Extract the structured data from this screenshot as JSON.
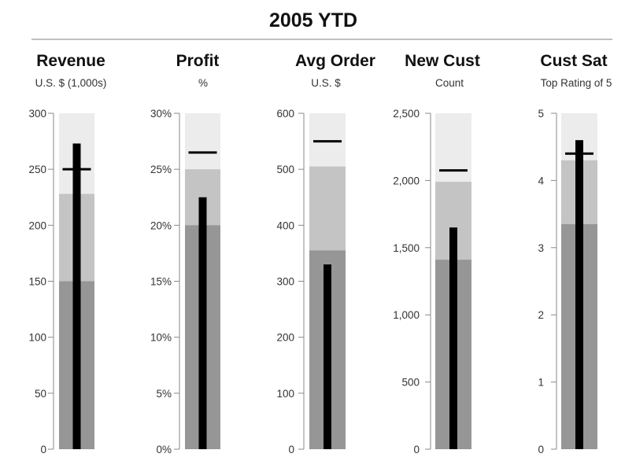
{
  "chart_data": {
    "type": "bullet",
    "title": "2005 YTD",
    "orientation": "vertical",
    "colors": {
      "range_light": "#ececec",
      "range_mid": "#c4c4c4",
      "range_dark": "#969696",
      "bar": "#000000",
      "target": "#000000",
      "axis": "#888888",
      "tick_label": "#333333",
      "title": "#111111"
    },
    "charts": [
      {
        "title": "Revenue",
        "subtitle": "U.S. $ (1,000s)",
        "ylim": [
          0,
          300
        ],
        "ticks": [
          0,
          50,
          100,
          150,
          200,
          250,
          300
        ],
        "tick_labels": [
          "0",
          "50",
          "100",
          "150",
          "200",
          "250",
          "300"
        ],
        "ranges": [
          150,
          228,
          300
        ],
        "value": 273,
        "target": 250
      },
      {
        "title": "Profit",
        "subtitle": "%",
        "ylim": [
          0,
          30
        ],
        "ticks": [
          0,
          5,
          10,
          15,
          20,
          25,
          30
        ],
        "tick_labels": [
          "0%",
          "5%",
          "10%",
          "15%",
          "20%",
          "25%",
          "30%"
        ],
        "ranges": [
          20,
          25,
          30
        ],
        "value": 22.5,
        "target": 26.5
      },
      {
        "title": "Avg Order",
        "subtitle": "U.S. $",
        "ylim": [
          0,
          600
        ],
        "ticks": [
          0,
          100,
          200,
          300,
          400,
          500,
          600
        ],
        "tick_labels": [
          "0",
          "100",
          "200",
          "300",
          "400",
          "500",
          "600"
        ],
        "ranges": [
          355,
          505,
          600
        ],
        "value": 330,
        "target": 550
      },
      {
        "title": "New Cust",
        "subtitle": "Count",
        "ylim": [
          0,
          2500
        ],
        "ticks": [
          0,
          500,
          1000,
          1500,
          2000,
          2500
        ],
        "tick_labels": [
          "0",
          "500",
          "1,000",
          "1,500",
          "2,000",
          "2,500"
        ],
        "ranges": [
          1410,
          1990,
          2500
        ],
        "value": 1650,
        "target": 2075
      },
      {
        "title": "Cust Sat",
        "subtitle": "Top Rating of 5",
        "ylim": [
          0,
          5
        ],
        "ticks": [
          0,
          1,
          2,
          3,
          4,
          5
        ],
        "tick_labels": [
          "0",
          "1",
          "2",
          "3",
          "4",
          "5"
        ],
        "ranges": [
          3.35,
          4.3,
          5
        ],
        "value": 4.6,
        "target": 4.4
      }
    ]
  }
}
